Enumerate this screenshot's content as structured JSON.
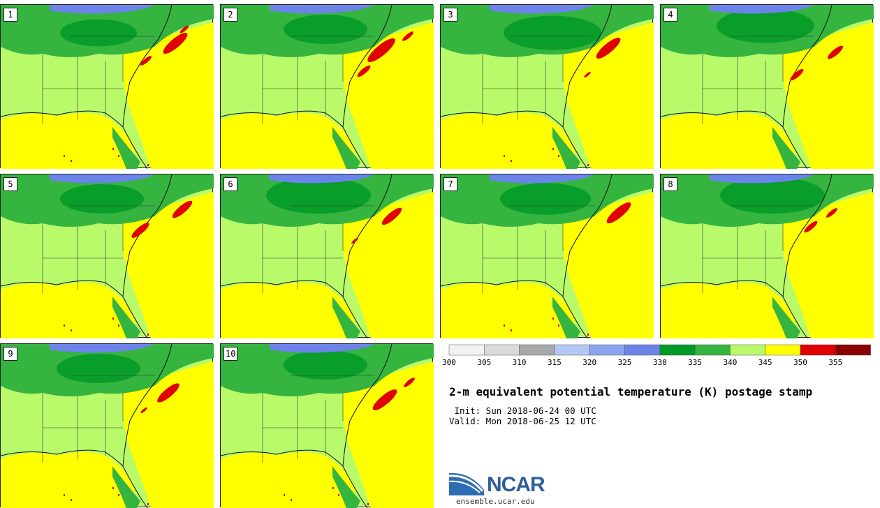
{
  "panels": [
    {
      "label": "1",
      "hot": [
        [
          250,
          55,
          22
        ],
        [
          208,
          80,
          10
        ],
        [
          263,
          35,
          8
        ]
      ],
      "dark": [
        [
          140,
          40,
          55
        ]
      ],
      "red_specks": true
    },
    {
      "label": "2",
      "hot": [
        [
          230,
          65,
          25
        ],
        [
          268,
          45,
          10
        ],
        [
          205,
          95,
          12
        ]
      ],
      "dark": [
        [
          150,
          35,
          60
        ]
      ],
      "red_specks": false
    },
    {
      "label": "3",
      "hot": [
        [
          240,
          62,
          22
        ],
        [
          210,
          100,
          6
        ]
      ],
      "dark": [
        [
          160,
          40,
          70
        ]
      ],
      "red_specks": true
    },
    {
      "label": "4",
      "hot": [
        [
          250,
          68,
          14
        ],
        [
          195,
          100,
          12
        ]
      ],
      "dark": [
        [
          150,
          30,
          70
        ]
      ],
      "red_specks": false
    },
    {
      "label": "5",
      "hot": [
        [
          260,
          50,
          18
        ],
        [
          200,
          80,
          16
        ]
      ],
      "dark": [
        [
          145,
          35,
          60
        ]
      ],
      "red_specks": true
    },
    {
      "label": "6",
      "hot": [
        [
          245,
          60,
          18
        ],
        [
          192,
          95,
          6
        ]
      ],
      "dark": [
        [
          140,
          30,
          75
        ]
      ],
      "red_specks": false
    },
    {
      "label": "7",
      "hot": [
        [
          255,
          55,
          22
        ]
      ],
      "dark": [
        [
          150,
          35,
          65
        ]
      ],
      "red_specks": true
    },
    {
      "label": "8",
      "hot": [
        [
          245,
          55,
          10
        ],
        [
          215,
          75,
          12
        ]
      ],
      "dark": [
        [
          160,
          30,
          75
        ]
      ],
      "red_specks": false
    },
    {
      "label": "9",
      "hot": [
        [
          240,
          70,
          20
        ],
        [
          205,
          95,
          6
        ]
      ],
      "dark": [
        [
          140,
          35,
          60
        ]
      ],
      "red_specks": true
    },
    {
      "label": "10",
      "hot": [
        [
          235,
          80,
          22
        ],
        [
          270,
          55,
          10
        ]
      ],
      "dark": [
        [
          150,
          30,
          60
        ]
      ],
      "red_specks": true
    }
  ],
  "colorbar": {
    "colors": [
      "#f2f2f2",
      "#dadada",
      "#a8a8a8",
      "#b3c8f5",
      "#8aa5ef",
      "#6c84ea",
      "#009a26",
      "#35b440",
      "#b8fa6a",
      "#ffff00",
      "#e00000",
      "#8b0000"
    ],
    "ticks": [
      "300",
      "305",
      "310",
      "315",
      "320",
      "325",
      "330",
      "335",
      "340",
      "345",
      "350",
      "355"
    ]
  },
  "title": "2-m equivalent potential temperature (K) postage stamp",
  "init_line": " Init: Sun 2018-06-24 00 UTC",
  "valid_line": "Valid: Mon 2018-06-25 12 UTC",
  "logo": {
    "text": "NCAR",
    "url": "ensemble.ucar.edu"
  }
}
